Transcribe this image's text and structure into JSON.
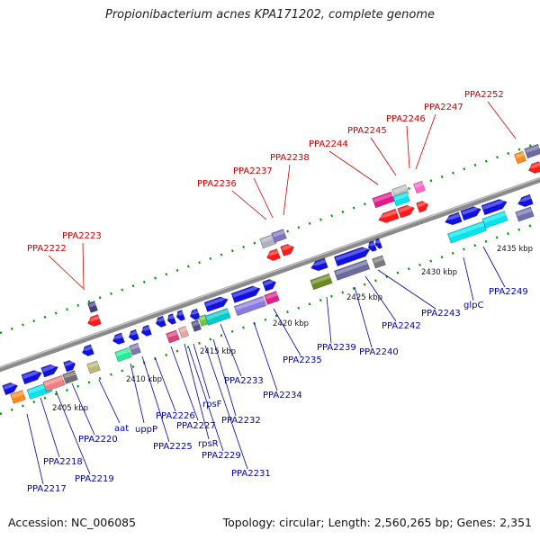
{
  "title": "Propionibacterium acnes KPA171202, complete genome",
  "footer": {
    "accession": "Accession: NC_006085",
    "summary": "Topology: circular; Length: 2,560,265 bp; Genes: 2,351"
  },
  "colors": {
    "upper_labels": "#cc0000",
    "lower_labels": "#0000aa",
    "backbone": "#808080",
    "dotted_track": "#007700"
  },
  "ticks": [
    "2405 kbp",
    "2410 kbp",
    "2415 kbp",
    "2420 kbp",
    "2425 kbp",
    "2430 kbp",
    "2435 kbp"
  ],
  "upper_labels": [
    "PPA2222",
    "PPA2223",
    "PPA2236",
    "PPA2237",
    "PPA2238",
    "PPA2244",
    "PPA2245",
    "PPA2246",
    "PPA2247",
    "PPA2252"
  ],
  "lower_labels": [
    "PPA2217",
    "PPA2218",
    "PPA2219",
    "PPA2220",
    "aat",
    "uppP",
    "PPA2225",
    "PPA2226",
    "PPA2227",
    "rpsR",
    "PPA2229",
    "rpsF",
    "PPA2231",
    "PPA2232",
    "PPA2233",
    "PPA2234",
    "PPA2235",
    "PPA2239",
    "PPA2240",
    "PPA2242",
    "PPA2243",
    "glpC",
    "PPA2249"
  ]
}
